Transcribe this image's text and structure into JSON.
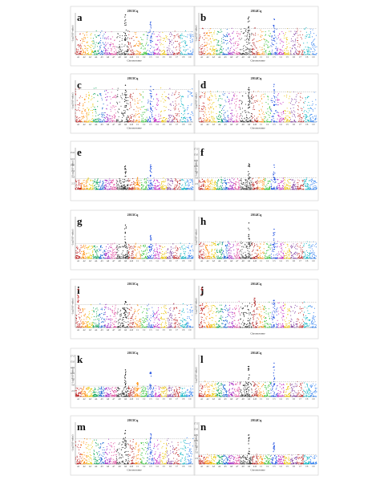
{
  "chart_data": [
    {
      "type": "scatter",
      "panel_label": "a",
      "title": "2013Cq",
      "xlabel": "Chromosome",
      "ylabel": "-Log10(P value)",
      "x_ticks": [
        "A1",
        "A2",
        "A3",
        "A4",
        "A5",
        "A6",
        "A7",
        "A8",
        "A9",
        "A10",
        "C1",
        "C2",
        "C3",
        "C4",
        "C5",
        "C6",
        "C7",
        "C8",
        "C9"
      ],
      "y_ticks": [],
      "threshold_fraction": 0.55,
      "peaks": [
        {
          "chrom": "A9",
          "height_fraction": 0.95
        },
        {
          "chrom": "C3",
          "height_fraction": 0.78
        }
      ]
    },
    {
      "type": "scatter",
      "panel_label": "b",
      "title": "2014Cq",
      "xlabel": "Chromosome",
      "ylabel": "-Log10(P value)",
      "x_ticks": [
        "A1",
        "A2",
        "A3",
        "A4",
        "A5",
        "A6",
        "A7",
        "A8",
        "A9",
        "A10",
        "C1",
        "C2",
        "C3",
        "C4",
        "C5",
        "C6",
        "C7",
        "C8",
        "C9"
      ],
      "y_ticks": [],
      "threshold_fraction": 0.62,
      "peaks": [
        {
          "chrom": "A9",
          "height_fraction": 0.9
        },
        {
          "chrom": "C3",
          "height_fraction": 0.85
        }
      ]
    },
    {
      "type": "scatter",
      "panel_label": "c",
      "title": "2013Cq",
      "xlabel": "Chromosome",
      "ylabel": "-Log10(P value)",
      "x_ticks": [
        "A1",
        "A2",
        "A3",
        "A4",
        "A5",
        "A6",
        "A7",
        "A8",
        "A9",
        "A10",
        "C1",
        "C2",
        "C3",
        "C4",
        "C5",
        "C6",
        "C7",
        "C8",
        "C9"
      ],
      "y_ticks": [],
      "threshold_fraction": 0.78,
      "peaks": [
        {
          "chrom": "A9",
          "height_fraction": 0.88
        },
        {
          "chrom": "C3",
          "height_fraction": 0.85
        }
      ]
    },
    {
      "type": "scatter",
      "panel_label": "d",
      "title": "2014Cq",
      "xlabel": "Chromosome",
      "ylabel": "-Log10(P value)",
      "x_ticks": [
        "A1",
        "A2",
        "A3",
        "A4",
        "A5",
        "A6",
        "A7",
        "A8",
        "A9",
        "A10",
        "C1",
        "C2",
        "C3",
        "C4",
        "C5",
        "C6",
        "C7",
        "C8",
        "C9"
      ],
      "y_ticks": [],
      "threshold_fraction": 0.72,
      "peaks": [
        {
          "chrom": "A9",
          "height_fraction": 0.82
        },
        {
          "chrom": "C3",
          "height_fraction": 0.9
        }
      ]
    },
    {
      "type": "scatter",
      "panel_label": "e",
      "title": "",
      "xlabel": "",
      "ylabel": "-Log10(P value)",
      "x_ticks": [],
      "y_ticks": [
        "15.0",
        "12.5",
        "10.0",
        "7.5",
        "5.0",
        "2.5"
      ],
      "ylim": [
        0,
        17
      ],
      "threshold": 4.5,
      "peaks": [
        {
          "chrom": "A9",
          "height": 9.5
        },
        {
          "chrom": "C3",
          "height": 10.0
        },
        {
          "chrom": "C1",
          "height": 4.8
        }
      ]
    },
    {
      "type": "scatter",
      "panel_label": "f",
      "title": "",
      "xlabel": "",
      "ylabel": "-Log10(P value)",
      "x_ticks": [],
      "y_ticks": [
        "17.5",
        "15.0",
        "12.5",
        "10.0",
        "7.5",
        "5.0",
        "2.5"
      ],
      "ylim": [
        0,
        18
      ],
      "threshold": 5.0,
      "peaks": [
        {
          "chrom": "A9",
          "height": 11.0
        },
        {
          "chrom": "C3",
          "height": 10.5
        }
      ]
    },
    {
      "type": "scatter",
      "panel_label": "g",
      "title": "2013Cq",
      "xlabel": "",
      "ylabel": "-Log10(P value)",
      "x_ticks": [
        "A1",
        "A2",
        "A3",
        "A4",
        "A5",
        "A6",
        "A7",
        "A8",
        "A9",
        "A10",
        "C1",
        "C2",
        "C3",
        "C4",
        "C5",
        "C6",
        "C7",
        "C8",
        "C9"
      ],
      "y_ticks": [],
      "threshold_fraction": 0.35,
      "peaks": [
        {
          "chrom": "A9",
          "height_fraction": 0.8
        },
        {
          "chrom": "C3",
          "height_fraction": 0.55
        }
      ]
    },
    {
      "type": "scatter",
      "panel_label": "h",
      "title": "2014Cq",
      "xlabel": "",
      "ylabel": "-Log10(P value)",
      "x_ticks": [
        "A1",
        "A2",
        "A3",
        "A4",
        "A5",
        "A6",
        "A7",
        "A8",
        "A9",
        "A10",
        "C1",
        "C2",
        "C3",
        "C4",
        "C5",
        "C6",
        "C7",
        "C8",
        "C9"
      ],
      "y_ticks": [],
      "threshold_fraction": 0.4,
      "peaks": [
        {
          "chrom": "A9",
          "height_fraction": 0.85
        },
        {
          "chrom": "C3",
          "height_fraction": 0.7
        }
      ]
    },
    {
      "type": "scatter",
      "panel_label": "i",
      "title": "2013Cq",
      "xlabel": "",
      "ylabel": "-Log10(P value)",
      "x_ticks": [
        "A1",
        "A2",
        "A3",
        "A4",
        "A5",
        "A6",
        "A7",
        "A8",
        "A9",
        "A10",
        "C1",
        "C2",
        "C3",
        "C4",
        "C5",
        "C6",
        "C7",
        "C8",
        "C9"
      ],
      "y_ticks": [],
      "threshold_fraction": 0.55,
      "peaks": [
        {
          "chrom": "A1",
          "height_fraction": 0.92
        },
        {
          "chrom": "A9",
          "height_fraction": 0.62
        }
      ]
    },
    {
      "type": "scatter",
      "panel_label": "j",
      "title": "2014Cq",
      "xlabel": "Chromosome",
      "ylabel": "-Log10(P value)",
      "x_ticks": [],
      "y_ticks": [],
      "threshold_fraction": 0.6,
      "peaks": [
        {
          "chrom": "A1",
          "height_fraction": 0.95
        },
        {
          "chrom": "A10",
          "height_fraction": 0.7
        },
        {
          "chrom": "C3",
          "height_fraction": 0.65
        }
      ]
    },
    {
      "type": "scatter",
      "panel_label": "k",
      "title": "2013Cq",
      "xlabel": "",
      "ylabel": "-Log10(P value)",
      "x_ticks": [
        "A1",
        "A2",
        "A3",
        "A4",
        "A5",
        "A6",
        "A7",
        "A8",
        "A9",
        "A10",
        "C1",
        "C2",
        "C3",
        "C4",
        "C5",
        "C6",
        "C7",
        "C8",
        "C9"
      ],
      "y_ticks": [
        "17.5",
        "15.0",
        "12.5",
        "10.0",
        "7.5",
        "5.0",
        "2.5"
      ],
      "ylim": [
        0,
        18
      ],
      "threshold": 4.5,
      "peaks": [
        {
          "chrom": "A9",
          "height": 11.5
        },
        {
          "chrom": "C3",
          "height": 10.5
        },
        {
          "chrom": "C1",
          "height": 6.0
        }
      ]
    },
    {
      "type": "scatter",
      "panel_label": "l",
      "title": "2014Cq",
      "xlabel": "",
      "ylabel": "-Log10(P value)",
      "x_ticks": [
        "A1",
        "A2",
        "A3",
        "A4",
        "A5",
        "A6",
        "A7",
        "A8",
        "A9",
        "A10",
        "C1",
        "C2",
        "C3",
        "C4",
        "C5",
        "C6",
        "C7",
        "C8",
        "C9"
      ],
      "y_ticks": [],
      "threshold_fraction": 0.35,
      "peaks": [
        {
          "chrom": "A9",
          "height_fraction": 0.72
        },
        {
          "chrom": "C3",
          "height_fraction": 0.8
        }
      ]
    },
    {
      "type": "scatter",
      "panel_label": "m",
      "title": "2013Cq",
      "xlabel": "Chromosome",
      "ylabel": "-Log10(P value)",
      "x_ticks": [
        "A1",
        "A2",
        "A3",
        "A4",
        "A5",
        "A6",
        "A7",
        "A8",
        "A9",
        "A10",
        "C1",
        "C2",
        "C3",
        "C4",
        "C5",
        "C6",
        "C7",
        "C8",
        "C9"
      ],
      "y_ticks": [],
      "threshold_fraction": 0.6,
      "peaks": [
        {
          "chrom": "A9",
          "height_fraction": 0.8
        },
        {
          "chrom": "C3",
          "height_fraction": 0.72
        }
      ]
    },
    {
      "type": "scatter",
      "panel_label": "n",
      "title": "2014Cq",
      "xlabel": "Chromosome",
      "ylabel": "-Log10(P value)",
      "x_ticks": [
        "A1",
        "A2",
        "A3",
        "A4",
        "A5",
        "A6",
        "A7",
        "A8",
        "A9",
        "A10",
        "C1",
        "C2",
        "C3",
        "C4",
        "C5",
        "C6",
        "C7",
        "C8",
        "C9"
      ],
      "y_ticks": [
        "17.5",
        "15.0",
        "12.5",
        "10.0",
        "7.5",
        "5.0",
        "2.5"
      ],
      "ylim": [
        0,
        18
      ],
      "threshold": 4.0,
      "peaks": [
        {
          "chrom": "A9",
          "height": 12.5
        },
        {
          "chrom": "C3",
          "height": 9.0
        }
      ]
    }
  ],
  "chromosomes": [
    "A1",
    "A2",
    "A3",
    "A4",
    "A5",
    "A6",
    "A7",
    "A8",
    "A9",
    "A10",
    "C1",
    "C2",
    "C3",
    "C4",
    "C5",
    "C6",
    "C7",
    "C8",
    "C9"
  ],
  "chromosome_colors": [
    "#c02020",
    "#ff8800",
    "#e8c800",
    "#00a050",
    "#1060d0",
    "#a020c0",
    "#e050a0",
    "#404040",
    "#202020",
    "#b02020",
    "#ff9010",
    "#30c030",
    "#2050e0",
    "#c020c0",
    "#e8c000",
    "#8040a0",
    "#c03030",
    "#00b0c0",
    "#3080f0"
  ],
  "threshold_color": "#999999"
}
